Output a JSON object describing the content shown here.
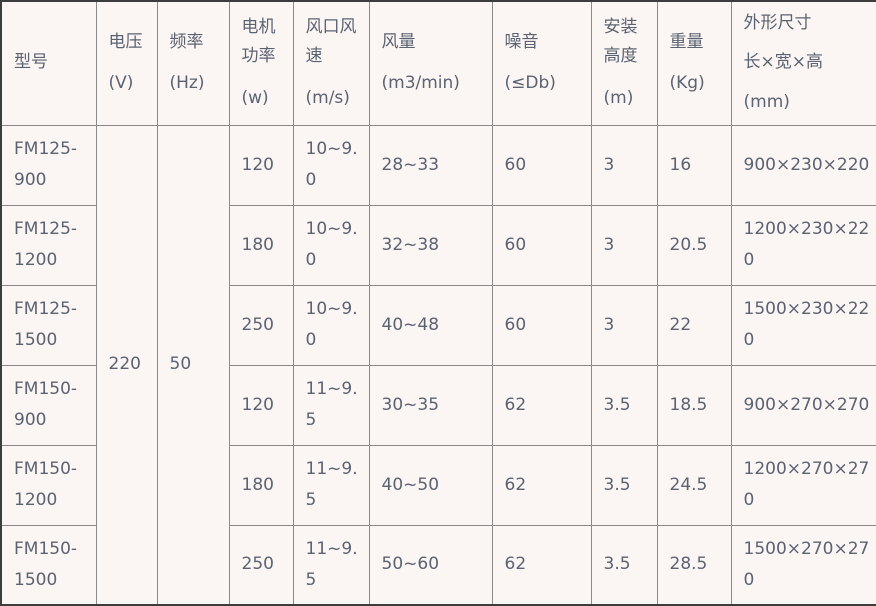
{
  "table": {
    "columns": [
      {
        "id": "model",
        "label": "型号",
        "unit": ""
      },
      {
        "id": "voltage",
        "label": "电压",
        "unit": "(V)"
      },
      {
        "id": "frequency",
        "label": "频率",
        "unit": "(Hz)"
      },
      {
        "id": "power",
        "label": "电机功率",
        "unit": "(w)"
      },
      {
        "id": "wind_speed",
        "label": "风口风速",
        "unit": "(m/s)"
      },
      {
        "id": "air_volume",
        "label": "风量",
        "unit": "(m3/min)"
      },
      {
        "id": "noise",
        "label": "噪音",
        "unit": "(≤Db)"
      },
      {
        "id": "install_height",
        "label": "安装高度",
        "unit": "(m)"
      },
      {
        "id": "weight",
        "label": "重量",
        "unit": "(Kg)"
      },
      {
        "id": "dimensions",
        "label": "外形尺寸",
        "sub_label": "长×宽×高",
        "unit": "(mm)"
      }
    ],
    "shared": {
      "voltage": "220",
      "frequency": "50"
    },
    "rows": [
      {
        "model": "FM125-900",
        "power": "120",
        "wind_speed": "10~9.0",
        "air_volume": "28~33",
        "noise": "60",
        "install_height": "3",
        "weight": "16",
        "dimensions": "900×230×220"
      },
      {
        "model": "FM125-1200",
        "power": "180",
        "wind_speed": "10~9.0",
        "air_volume": "32~38",
        "noise": "60",
        "install_height": "3",
        "weight": "20.5",
        "dimensions": "1200×230×220"
      },
      {
        "model": "FM125-1500",
        "power": "250",
        "wind_speed": "10~9.0",
        "air_volume": "40~48",
        "noise": "60",
        "install_height": "3",
        "weight": "22",
        "dimensions": "1500×230×220"
      },
      {
        "model": "FM150-900",
        "power": "120",
        "wind_speed": "11~9.5",
        "air_volume": "30~35",
        "noise": "62",
        "install_height": "3.5",
        "weight": "18.5",
        "dimensions": "900×270×270"
      },
      {
        "model": "FM150-1200",
        "power": "180",
        "wind_speed": "11~9.5",
        "air_volume": "40~50",
        "noise": "62",
        "install_height": "3.5",
        "weight": "24.5",
        "dimensions": "1200×270×270"
      },
      {
        "model": "FM150-1500",
        "power": "250",
        "wind_speed": "11~9.5",
        "air_volume": "50~60",
        "noise": "62",
        "install_height": "3.5",
        "weight": "28.5",
        "dimensions": "1500×270×270"
      }
    ],
    "colors": {
      "cell_background": "#fbf6f3",
      "text": "#5b6372",
      "inner_border": "#8a8a8a",
      "outer_border": "#3d3d3d"
    }
  }
}
